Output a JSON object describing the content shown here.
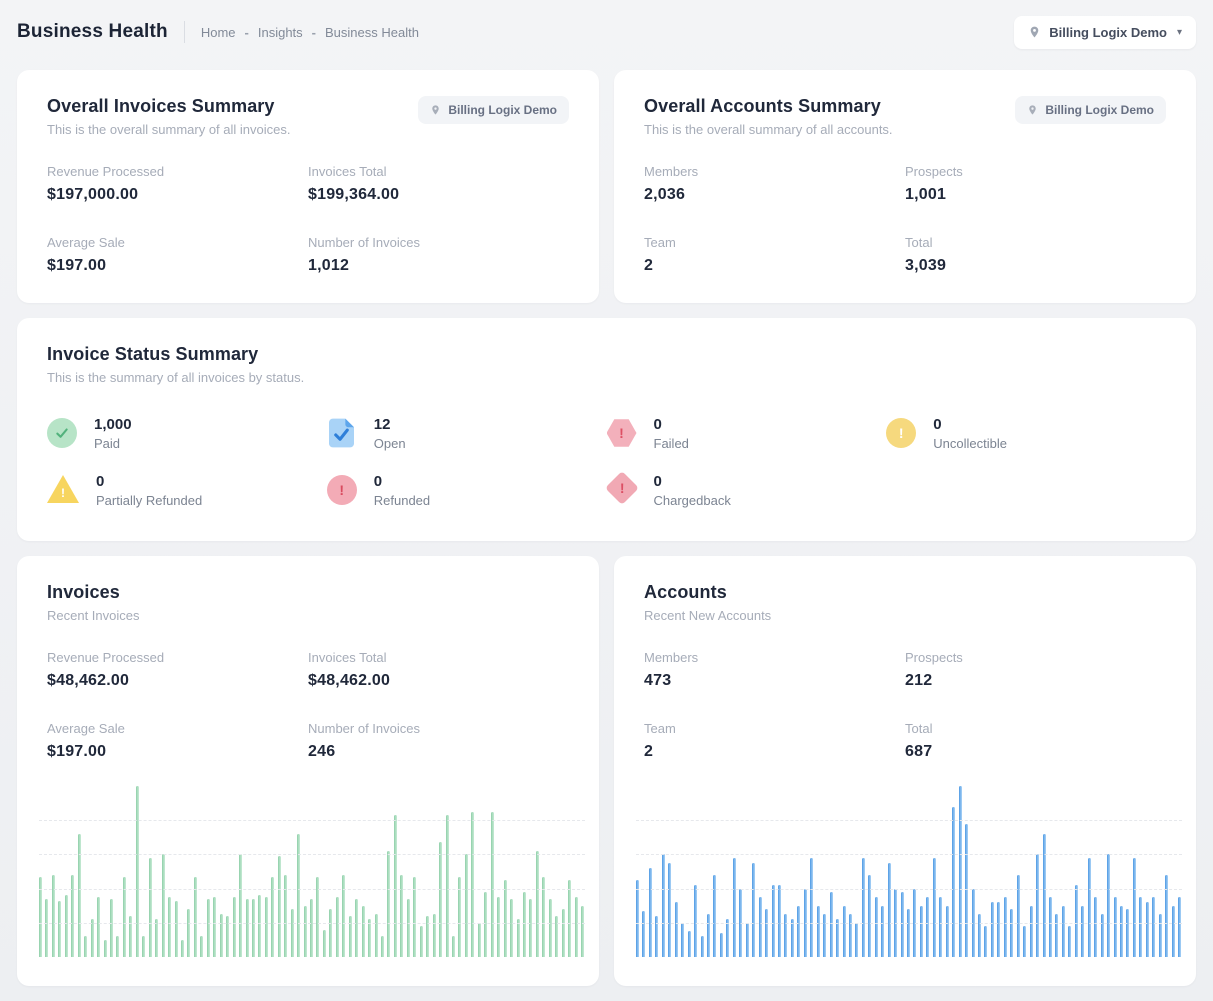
{
  "page": {
    "title": "Business Health",
    "breadcrumb": [
      "Home",
      "Insights",
      "Business Health"
    ],
    "breadcrumb_separator": "-",
    "org_selector": {
      "label": "Billing Logix Demo",
      "icon": "location-pin-icon"
    }
  },
  "colors": {
    "background": "#eef0f3",
    "card": "#ffffff",
    "text_dark": "#20283a",
    "text_gray": "#a6acb8",
    "paid_green": "#b7e4c7",
    "open_blue": "#a9d3f7",
    "failed_pink": "#f3b0bb",
    "uncollectible_yellow": "#f6d97e",
    "invoices_chart_green": "#8fd0a9",
    "accounts_chart_blue": "#4e9ae4"
  },
  "cards": {
    "overall_invoices": {
      "title": "Overall Invoices Summary",
      "subtitle": "This is the overall summary of all invoices.",
      "badge": "Billing Logix Demo",
      "stats": [
        {
          "label": "Revenue Processed",
          "value": "$197,000.00"
        },
        {
          "label": "Invoices Total",
          "value": "$199,364.00"
        },
        {
          "label": "Average Sale",
          "value": "$197.00"
        },
        {
          "label": "Number of Invoices",
          "value": "1,012"
        }
      ]
    },
    "overall_accounts": {
      "title": "Overall Accounts Summary",
      "subtitle": "This is the overall summary of all accounts.",
      "badge": "Billing Logix Demo",
      "stats": [
        {
          "label": "Members",
          "value": "2,036"
        },
        {
          "label": "Prospects",
          "value": "1,001"
        },
        {
          "label": "Team",
          "value": "2"
        },
        {
          "label": "Total",
          "value": "3,039"
        }
      ]
    },
    "invoice_status": {
      "title": "Invoice Status Summary",
      "subtitle": "This is the summary of all invoices by status.",
      "statuses": [
        {
          "value": "1,000",
          "label": "Paid",
          "icon": "check-circle-icon"
        },
        {
          "value": "12",
          "label": "Open",
          "icon": "document-check-icon"
        },
        {
          "value": "0",
          "label": "Failed",
          "icon": "hexagon-exclamation-icon"
        },
        {
          "value": "0",
          "label": "Uncollectible",
          "icon": "circle-exclamation-icon"
        },
        {
          "value": "0",
          "label": "Partially Refunded",
          "icon": "triangle-exclamation-icon"
        },
        {
          "value": "0",
          "label": "Refunded",
          "icon": "circle-exclamation-icon"
        },
        {
          "value": "0",
          "label": "Chargedback",
          "icon": "diamond-exclamation-icon"
        }
      ]
    },
    "invoices": {
      "title": "Invoices",
      "subtitle": "Recent Invoices",
      "stats": [
        {
          "label": "Revenue Processed",
          "value": "$48,462.00"
        },
        {
          "label": "Invoices Total",
          "value": "$48,462.00"
        },
        {
          "label": "Average Sale",
          "value": "$197.00"
        },
        {
          "label": "Number of Invoices",
          "value": "246"
        }
      ]
    },
    "accounts": {
      "title": "Accounts",
      "subtitle": "Recent New Accounts",
      "stats": [
        {
          "label": "Members",
          "value": "473"
        },
        {
          "label": "Prospects",
          "value": "212"
        },
        {
          "label": "Team",
          "value": "2"
        },
        {
          "label": "Total",
          "value": "687"
        }
      ]
    }
  },
  "chart_data": [
    {
      "type": "bar",
      "title": "Recent Invoices",
      "xlabel": "",
      "ylabel": "",
      "axis_labels": "none (sparkline-style, dashed gridlines at 20/40/60/80%)",
      "ylim": [
        0,
        100
      ],
      "color_dark": "#8fd0a9",
      "color_light": "#c8ebd6",
      "values": [
        47,
        34,
        48,
        33,
        36,
        48,
        72,
        12,
        22,
        35,
        10,
        34,
        12,
        47,
        24,
        100,
        12,
        58,
        22,
        60,
        35,
        33,
        10,
        28,
        47,
        12,
        34,
        35,
        25,
        24,
        35,
        60,
        34,
        34,
        36,
        35,
        47,
        59,
        48,
        28,
        72,
        30,
        34,
        47,
        16,
        28,
        35,
        48,
        24,
        34,
        30,
        22,
        25,
        12,
        62,
        83,
        48,
        34,
        47,
        18,
        24,
        25,
        67,
        83,
        12,
        47,
        60,
        85,
        20,
        38,
        85,
        35,
        45,
        34,
        22,
        38,
        34,
        62,
        47,
        34,
        24,
        28,
        45,
        35,
        30
      ]
    },
    {
      "type": "bar",
      "title": "Recent New Accounts",
      "xlabel": "",
      "ylabel": "",
      "axis_labels": "none (sparkline-style, dashed gridlines at 20/40/60/80%)",
      "ylim": [
        0,
        100
      ],
      "color_dark": "#4e9ae4",
      "color_light": "#aad2f6",
      "values": [
        45,
        27,
        52,
        24,
        60,
        55,
        32,
        20,
        15,
        42,
        12,
        25,
        48,
        14,
        22,
        58,
        40,
        20,
        55,
        35,
        28,
        42,
        42,
        25,
        22,
        30,
        40,
        58,
        30,
        25,
        38,
        22,
        30,
        25,
        20,
        58,
        48,
        35,
        30,
        55,
        40,
        38,
        28,
        40,
        30,
        35,
        58,
        35,
        30,
        88,
        100,
        78,
        40,
        25,
        18,
        32,
        32,
        35,
        28,
        48,
        18,
        30,
        60,
        72,
        35,
        25,
        30,
        18,
        42,
        30,
        58,
        35,
        25,
        60,
        35,
        30,
        28,
        58,
        35,
        32,
        35,
        25,
        48,
        30,
        35
      ]
    }
  ]
}
